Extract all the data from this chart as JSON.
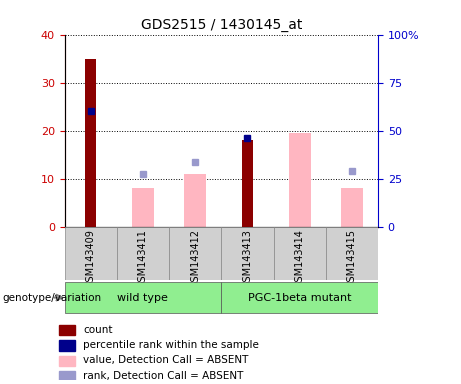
{
  "title": "GDS2515 / 1430145_at",
  "samples": [
    "GSM143409",
    "GSM143411",
    "GSM143412",
    "GSM143413",
    "GSM143414",
    "GSM143415"
  ],
  "red_bars": [
    35,
    null,
    null,
    18,
    null,
    null
  ],
  "pink_bars": [
    null,
    8,
    11,
    null,
    19.5,
    8
  ],
  "blue_squares_left": [
    24,
    null,
    null,
    18.5,
    null,
    null
  ],
  "purple_squares_left": [
    null,
    11,
    13.5,
    null,
    null,
    11.5
  ],
  "left_ylim": [
    0,
    40
  ],
  "left_yticks": [
    0,
    10,
    20,
    30,
    40
  ],
  "right_ylim": [
    0,
    100
  ],
  "right_yticks": [
    0,
    25,
    50,
    75,
    100
  ],
  "right_yticklabels": [
    "0",
    "25",
    "50",
    "75",
    "100%"
  ],
  "color_red": "#8B0000",
  "color_pink": "#FFB6C1",
  "color_blue": "#00008B",
  "color_purple": "#9999CC",
  "color_left_axis": "#CC0000",
  "color_right_axis": "#0000CC",
  "group1_label": "wild type",
  "group2_label": "PGC-1beta mutant",
  "group_color": "#90EE90",
  "genotype_label": "genotype/variation",
  "legend_items": [
    {
      "color": "#8B0000",
      "label": "count"
    },
    {
      "color": "#00008B",
      "label": "percentile rank within the sample"
    },
    {
      "color": "#FFB6C1",
      "label": "value, Detection Call = ABSENT"
    },
    {
      "color": "#9999CC",
      "label": "rank, Detection Call = ABSENT"
    }
  ]
}
